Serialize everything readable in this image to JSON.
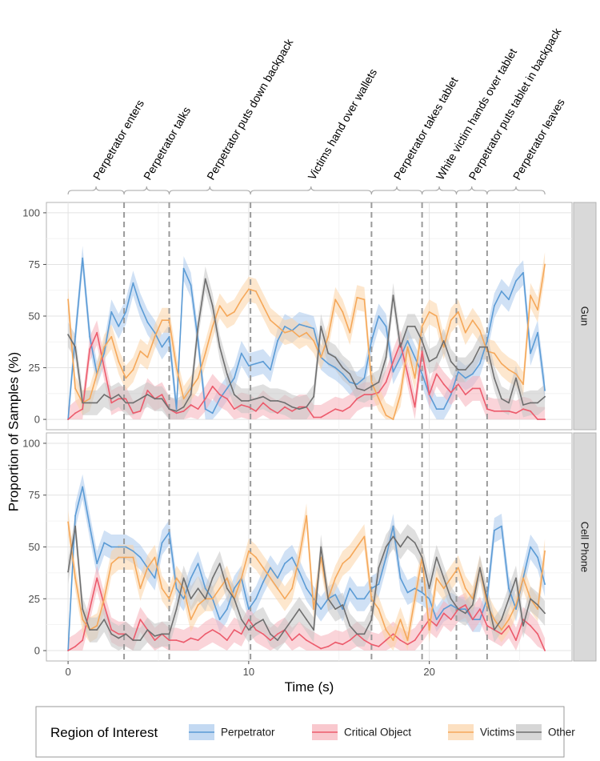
{
  "chart_data": {
    "type": "line",
    "xlabel": "Time (s)",
    "ylabel": "Proportion of Samples (%)",
    "xlim": [
      -1.2,
      27.9
    ],
    "ylim": [
      -5,
      105
    ],
    "x_ticks": [
      0,
      10,
      20
    ],
    "y_ticks": [
      0,
      25,
      50,
      75,
      100
    ],
    "legend": {
      "title": "Region of Interest",
      "position": "bottom",
      "entries": [
        "Perpetrator",
        "Critical Object",
        "Victims",
        "Other"
      ]
    },
    "colors": {
      "Perpetrator": "#5b9bd5",
      "Critical Object": "#ec5b6c",
      "Victims": "#f5a85a",
      "Other": "#6e6e6e"
    },
    "band_colors": {
      "Perpetrator": "#a9c9ec",
      "Critical Object": "#f6b0b9",
      "Victims": "#fbd3a6",
      "Other": "#c4c4c4"
    },
    "events": [
      {
        "label": "Perpetrator enters",
        "start": 0,
        "end": 3.1
      },
      {
        "label": "Perpetrator talks",
        "start": 3.1,
        "end": 5.6
      },
      {
        "label": "Perpetrator puts down backpack",
        "start": 5.6,
        "end": 10.1
      },
      {
        "label": "Victims hand over wallets",
        "start": 10.1,
        "end": 16.8
      },
      {
        "label": "Perpetrator takes tablet",
        "start": 16.8,
        "end": 19.6
      },
      {
        "label": "White victim hands over tablet",
        "start": 19.6,
        "end": 21.5
      },
      {
        "label": "Perpetrator puts tablet in backpack",
        "start": 21.5,
        "end": 23.2
      },
      {
        "label": "Perpetrator leaves",
        "start": 23.2,
        "end": 26.4
      }
    ],
    "event_boundaries": [
      3.1,
      5.6,
      10.1,
      16.8,
      19.6,
      21.5,
      23.2
    ],
    "band_halfwidth_pct": 6,
    "x": [
      0,
      0.4,
      0.8,
      1.2,
      1.6,
      2.0,
      2.4,
      2.8,
      3.2,
      3.6,
      4.0,
      4.4,
      4.8,
      5.2,
      5.6,
      6.0,
      6.4,
      6.8,
      7.2,
      7.6,
      8.0,
      8.4,
      8.8,
      9.2,
      9.6,
      10.0,
      10.4,
      10.8,
      11.2,
      11.6,
      12.0,
      12.4,
      12.8,
      13.2,
      13.6,
      14.0,
      14.4,
      14.8,
      15.2,
      15.6,
      16.0,
      16.4,
      16.8,
      17.2,
      17.6,
      18.0,
      18.4,
      18.8,
      19.2,
      19.6,
      20.0,
      20.4,
      20.8,
      21.2,
      21.6,
      22.0,
      22.4,
      22.8,
      23.2,
      23.6,
      24.0,
      24.4,
      24.8,
      25.2,
      25.6,
      26.0,
      26.4
    ],
    "panels": [
      {
        "name": "Gun",
        "series": [
          {
            "name": "Perpetrator",
            "values": [
              0,
              40,
              78,
              40,
              22,
              32,
              52,
              45,
              52,
              66,
              55,
              47,
              42,
              35,
              40,
              5,
              73,
              65,
              38,
              5,
              3,
              10,
              15,
              20,
              32,
              26,
              27,
              28,
              24,
              38,
              45,
              43,
              46,
              45,
              44,
              30,
              27,
              25,
              22,
              18,
              17,
              20,
              38,
              50,
              45,
              23,
              30,
              38,
              30,
              22,
              12,
              5,
              5,
              12,
              23,
              20,
              22,
              27,
              38,
              55,
              62,
              58,
              67,
              71,
              32,
              42,
              14
            ]
          },
          {
            "name": "Critical Object",
            "values": [
              0,
              3,
              5,
              34,
              42,
              25,
              8,
              10,
              10,
              3,
              4,
              14,
              10,
              12,
              5,
              3,
              4,
              7,
              5,
              10,
              16,
              12,
              10,
              5,
              7,
              6,
              4,
              8,
              5,
              3,
              6,
              4,
              6,
              6,
              1,
              1,
              3,
              5,
              4,
              6,
              10,
              12,
              12,
              13,
              18,
              28,
              37,
              22,
              6,
              33,
              12,
              22,
              17,
              13,
              17,
              12,
              15,
              15,
              5,
              4,
              4,
              4,
              3,
              5,
              4,
              0,
              0
            ]
          },
          {
            "name": "Victims",
            "values": [
              58,
              15,
              8,
              10,
              22,
              35,
              40,
              28,
              20,
              24,
              33,
              30,
              40,
              48,
              48,
              25,
              10,
              15,
              20,
              32,
              45,
              55,
              50,
              52,
              58,
              63,
              62,
              55,
              48,
              45,
              42,
              43,
              40,
              42,
              38,
              30,
              40,
              58,
              52,
              42,
              59,
              58,
              18,
              10,
              2,
              0,
              12,
              35,
              20,
              45,
              52,
              50,
              35,
              48,
              52,
              42,
              48,
              43,
              33,
              32,
              27,
              24,
              22,
              17,
              60,
              53,
              75
            ]
          },
          {
            "name": "Other",
            "values": [
              41,
              35,
              8,
              8,
              8,
              12,
              10,
              12,
              8,
              8,
              10,
              12,
              10,
              10,
              5,
              4,
              6,
              12,
              45,
              68,
              55,
              35,
              22,
              12,
              9,
              9,
              10,
              11,
              9,
              9,
              8,
              6,
              5,
              6,
              11,
              45,
              32,
              30,
              25,
              22,
              15,
              14,
              16,
              18,
              30,
              60,
              35,
              45,
              45,
              38,
              28,
              30,
              38,
              28,
              24,
              24,
              28,
              35,
              35,
              20,
              10,
              8,
              20,
              7,
              8,
              8,
              11
            ]
          }
        ]
      },
      {
        "name": "Cell Phone",
        "series": [
          {
            "name": "Perpetrator",
            "values": [
              0,
              65,
              79,
              60,
              42,
              52,
              50,
              50,
              50,
              48,
              45,
              40,
              35,
              52,
              57,
              30,
              25,
              35,
              42,
              30,
              25,
              15,
              20,
              30,
              35,
              20,
              25,
              33,
              40,
              35,
              42,
              45,
              38,
              30,
              25,
              20,
              25,
              27,
              20,
              30,
              25,
              25,
              30,
              32,
              45,
              60,
              35,
              28,
              30,
              28,
              25,
              15,
              20,
              22,
              20,
              20,
              15,
              15,
              25,
              58,
              60,
              30,
              20,
              35,
              50,
              45,
              32
            ]
          },
          {
            "name": "Critical Object",
            "values": [
              0,
              2,
              5,
              20,
              35,
              22,
              10,
              8,
              8,
              5,
              15,
              10,
              5,
              8,
              5,
              5,
              4,
              6,
              5,
              8,
              10,
              8,
              5,
              10,
              8,
              15,
              10,
              8,
              5,
              8,
              10,
              5,
              8,
              5,
              3,
              1,
              2,
              4,
              3,
              5,
              8,
              5,
              3,
              2,
              5,
              8,
              5,
              3,
              5,
              10,
              15,
              12,
              18,
              15,
              20,
              22,
              15,
              20,
              12,
              10,
              8,
              12,
              5,
              15,
              12,
              8,
              0
            ]
          },
          {
            "name": "Victims",
            "values": [
              62,
              35,
              15,
              10,
              12,
              25,
              42,
              45,
              45,
              45,
              30,
              40,
              45,
              30,
              25,
              35,
              30,
              15,
              22,
              25,
              25,
              30,
              35,
              25,
              35,
              48,
              45,
              40,
              35,
              30,
              25,
              30,
              45,
              65,
              20,
              45,
              25,
              35,
              42,
              45,
              50,
              55,
              25,
              20,
              10,
              5,
              15,
              5,
              25,
              45,
              10,
              35,
              30,
              35,
              40,
              30,
              25,
              40,
              22,
              15,
              10,
              15,
              22,
              35,
              25,
              20,
              48
            ]
          },
          {
            "name": "Other",
            "values": [
              38,
              60,
              20,
              10,
              10,
              15,
              8,
              6,
              8,
              5,
              5,
              10,
              7,
              8,
              8,
              20,
              35,
              25,
              30,
              25,
              35,
              42,
              30,
              25,
              15,
              10,
              13,
              15,
              8,
              5,
              10,
              15,
              20,
              15,
              10,
              50,
              25,
              20,
              22,
              12,
              8,
              8,
              15,
              40,
              50,
              55,
              50,
              55,
              52,
              45,
              30,
              45,
              35,
              25,
              20,
              18,
              22,
              40,
              25,
              10,
              15,
              25,
              35,
              12,
              25,
              22,
              18
            ]
          }
        ]
      }
    ]
  }
}
